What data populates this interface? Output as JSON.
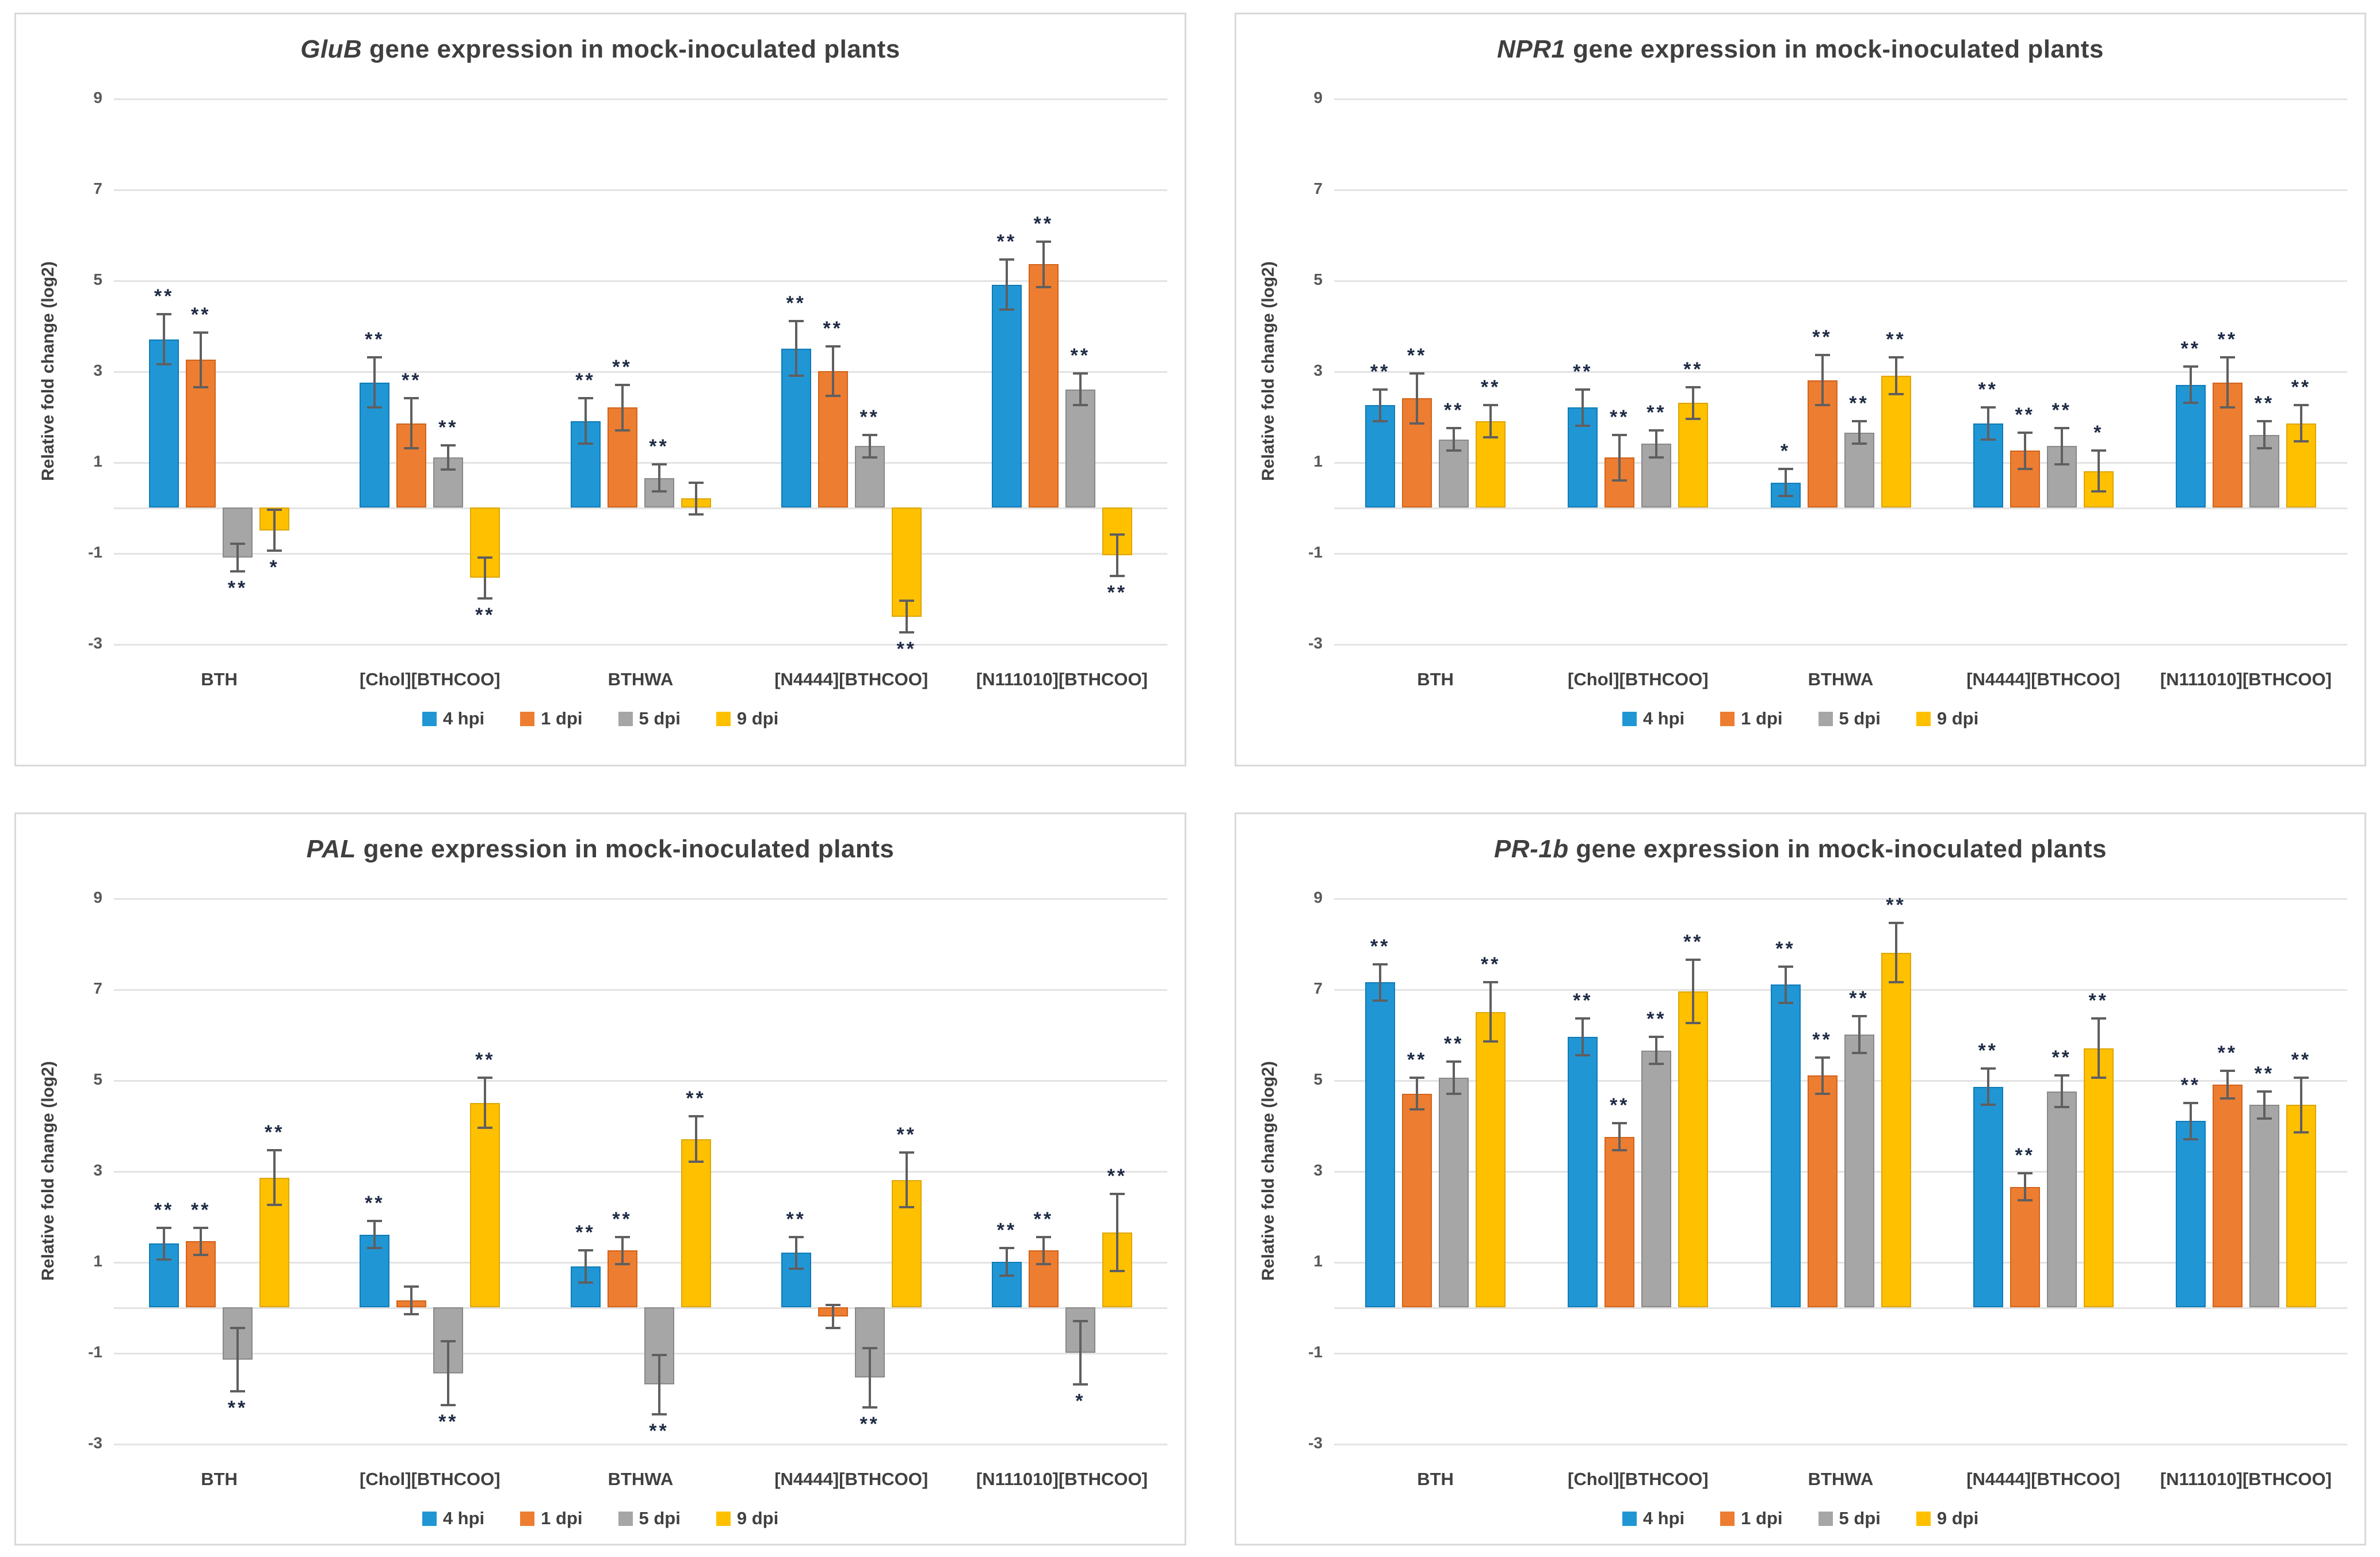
{
  "figure_caption": "",
  "chart_data": {
    "type": "bar",
    "shared": {
      "categories": [
        "BTH",
        "[Chol][BTHCOO]",
        "BTHWA",
        "[N4444][BTHCOO]",
        "[N111010][BTHCOO]"
      ],
      "series_names": [
        "4 hpi",
        "1 dpi",
        "5 dpi",
        "9 dpi"
      ],
      "series_colors": [
        "#2196d5",
        "#ed7d31",
        "#a6a6a6",
        "#ffc000"
      ],
      "series_borders": [
        "#0f7cb8",
        "#d3631a",
        "#898989",
        "#dda600"
      ],
      "ylabel": "Relative fold change (log2)",
      "yticks": [
        9,
        7,
        5,
        3,
        1,
        -1,
        -3
      ],
      "ylim": [
        -3.6,
        9.5
      ],
      "grid": true,
      "legend_position": "bottom",
      "error_bars": true,
      "significance_note": "asterisks denote statistical significance (* and **)"
    },
    "charts": [
      {
        "id": "glub",
        "title_gene": "GluB",
        "title_rest": " gene expression in mock-inoculated plants",
        "series": [
          {
            "name": "4 hpi",
            "values": [
              3.7,
              2.75,
              1.9,
              3.5,
              4.9
            ],
            "errors": [
              0.55,
              0.55,
              0.5,
              0.6,
              0.55
            ],
            "sig": [
              "**",
              "**",
              "**",
              "**",
              "**"
            ]
          },
          {
            "name": "1 dpi",
            "values": [
              3.25,
              1.85,
              2.2,
              3.0,
              5.35
            ],
            "errors": [
              0.6,
              0.55,
              0.5,
              0.55,
              0.5
            ],
            "sig": [
              "**",
              "**",
              "**",
              "**",
              "**"
            ]
          },
          {
            "name": "5 dpi",
            "values": [
              -1.1,
              1.1,
              0.65,
              1.35,
              2.6
            ],
            "errors": [
              0.3,
              0.27,
              0.3,
              0.25,
              0.35
            ],
            "sig": [
              "**",
              "**",
              "**",
              "**",
              "**"
            ]
          },
          {
            "name": "9 dpi",
            "values": [
              -0.5,
              -1.55,
              0.2,
              -2.4,
              -1.05
            ],
            "errors": [
              0.45,
              0.45,
              0.35,
              0.35,
              0.45
            ],
            "sig": [
              "*",
              "**",
              "",
              "**",
              "**"
            ]
          }
        ]
      },
      {
        "id": "npr1",
        "title_gene": "NPR1",
        "title_rest": " gene expression in mock-inoculated plants",
        "series": [
          {
            "name": "4 hpi",
            "values": [
              2.25,
              2.2,
              0.55,
              1.85,
              2.7
            ],
            "errors": [
              0.35,
              0.4,
              0.3,
              0.35,
              0.4
            ],
            "sig": [
              "**",
              "**",
              "*",
              "**",
              "**"
            ]
          },
          {
            "name": "1 dpi",
            "values": [
              2.4,
              1.1,
              2.8,
              1.25,
              2.75
            ],
            "errors": [
              0.55,
              0.5,
              0.55,
              0.4,
              0.55
            ],
            "sig": [
              "**",
              "**",
              "**",
              "**",
              "**"
            ]
          },
          {
            "name": "5 dpi",
            "values": [
              1.5,
              1.4,
              1.65,
              1.35,
              1.6
            ],
            "errors": [
              0.25,
              0.3,
              0.25,
              0.4,
              0.3
            ],
            "sig": [
              "**",
              "**",
              "**",
              "**",
              "**"
            ]
          },
          {
            "name": "9 dpi",
            "values": [
              1.9,
              2.3,
              2.9,
              0.8,
              1.85
            ],
            "errors": [
              0.35,
              0.35,
              0.4,
              0.45,
              0.4
            ],
            "sig": [
              "**",
              "**",
              "**",
              "*",
              "**"
            ]
          }
        ]
      },
      {
        "id": "pal",
        "title_gene": "PAL",
        "title_rest": " gene expression in mock-inoculated plants",
        "series": [
          {
            "name": "4 hpi",
            "values": [
              1.4,
              1.6,
              0.9,
              1.2,
              1.0
            ],
            "errors": [
              0.35,
              0.3,
              0.35,
              0.35,
              0.3
            ],
            "sig": [
              "**",
              "**",
              "**",
              "**",
              "**"
            ]
          },
          {
            "name": "1 dpi",
            "values": [
              1.45,
              0.15,
              1.25,
              -0.2,
              1.25
            ],
            "errors": [
              0.3,
              0.3,
              0.3,
              0.25,
              0.3
            ],
            "sig": [
              "**",
              "",
              "**",
              "",
              "**"
            ]
          },
          {
            "name": "5 dpi",
            "values": [
              -1.15,
              -1.45,
              -1.7,
              -1.55,
              -1.0
            ],
            "errors": [
              0.7,
              0.7,
              0.65,
              0.65,
              0.7
            ],
            "sig": [
              "**",
              "**",
              "**",
              "**",
              "*"
            ]
          },
          {
            "name": "9 dpi",
            "values": [
              2.85,
              4.5,
              3.7,
              2.8,
              1.65
            ],
            "errors": [
              0.6,
              0.55,
              0.5,
              0.6,
              0.85
            ],
            "sig": [
              "**",
              "**",
              "**",
              "**",
              "**"
            ]
          }
        ]
      },
      {
        "id": "pr1b",
        "title_gene": "PR-1b",
        "title_rest": " gene expression in mock-inoculated plants",
        "series": [
          {
            "name": "4 hpi",
            "values": [
              7.15,
              5.95,
              7.1,
              4.85,
              4.1
            ],
            "errors": [
              0.4,
              0.4,
              0.4,
              0.4,
              0.4
            ],
            "sig": [
              "**",
              "**",
              "**",
              "**",
              "**"
            ]
          },
          {
            "name": "1 dpi",
            "values": [
              4.7,
              3.75,
              5.1,
              2.65,
              4.9
            ],
            "errors": [
              0.35,
              0.3,
              0.4,
              0.3,
              0.3
            ],
            "sig": [
              "**",
              "**",
              "**",
              "**",
              "**"
            ]
          },
          {
            "name": "5 dpi",
            "values": [
              5.05,
              5.65,
              6.0,
              4.75,
              4.45
            ],
            "errors": [
              0.35,
              0.3,
              0.4,
              0.35,
              0.3
            ],
            "sig": [
              "**",
              "**",
              "**",
              "**",
              "**"
            ]
          },
          {
            "name": "9 dpi",
            "values": [
              6.5,
              6.95,
              7.8,
              5.7,
              4.45
            ],
            "errors": [
              0.65,
              0.7,
              0.65,
              0.65,
              0.6
            ],
            "sig": [
              "**",
              "**",
              "**",
              "**",
              "**"
            ]
          }
        ]
      }
    ]
  }
}
